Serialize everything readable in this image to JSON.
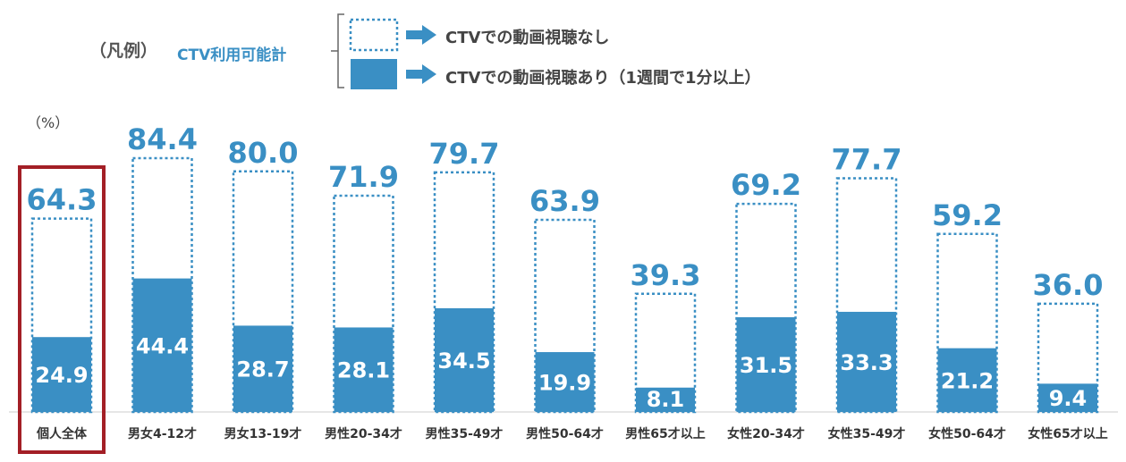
{
  "legend": {
    "label": "（凡例）",
    "series_label": "CTV利用可能計",
    "items": [
      {
        "text": "CTVでの動画視聴なし",
        "style": "dotted"
      },
      {
        "text": "CTVでの動画視聴あり（1週間で1分以上）",
        "style": "filled"
      }
    ]
  },
  "unit_label": "（%）",
  "colors": {
    "bar": "#3a8fc4",
    "total_label": "#3a8fc4",
    "highlight": "#a31f26",
    "inner_label": "#ffffff"
  },
  "chart_data": {
    "type": "bar",
    "categories": [
      "個人全体",
      "男女4-12才",
      "男女13-19才",
      "男性20-34才",
      "男性35-49才",
      "男性50-64才",
      "男性65才以上",
      "女性20-34才",
      "女性35-49才",
      "女性50-64才",
      "女性65才以上"
    ],
    "series": [
      {
        "name": "CTV利用可能計",
        "values": [
          64.3,
          84.4,
          80.0,
          71.9,
          79.7,
          63.9,
          39.3,
          69.2,
          77.7,
          59.2,
          36.0
        ]
      },
      {
        "name": "CTVでの動画視聴あり（1週間で1分以上）",
        "values": [
          24.9,
          44.4,
          28.7,
          28.1,
          34.5,
          19.9,
          8.1,
          31.5,
          33.3,
          21.2,
          9.4
        ]
      }
    ],
    "total_labels": [
      "64.3",
      "84.4",
      "80.0",
      "71.9",
      "79.7",
      "63.9",
      "39.3",
      "69.2",
      "77.7",
      "59.2",
      "36.0"
    ],
    "inner_labels": [
      "24.9",
      "44.4",
      "28.7",
      "28.1",
      "34.5",
      "19.9",
      "8.1",
      "31.5",
      "33.3",
      "21.2",
      "9.4"
    ],
    "highlighted_category": "個人全体"
  }
}
